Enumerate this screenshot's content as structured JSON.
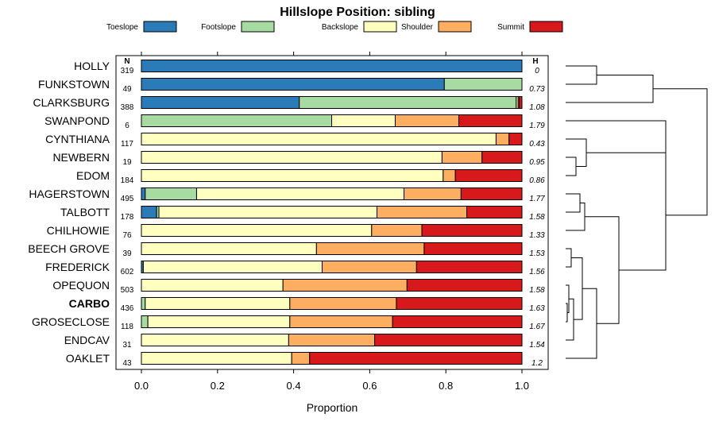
{
  "chart_data": {
    "type": "bar",
    "stacked": true,
    "orientation": "horizontal",
    "title": "Hillslope Position: sibling",
    "xlabel": "Proportion",
    "xlim": [
      0,
      1
    ],
    "xticks": [
      "0.0",
      "0.2",
      "0.4",
      "0.6",
      "0.8",
      "1.0"
    ],
    "n_header": "N",
    "h_header": "H",
    "series": [
      {
        "name": "Toeslope",
        "color": "#2B7BB8"
      },
      {
        "name": "Footslope",
        "color": "#A8DBA2"
      },
      {
        "name": "Backslope",
        "color": "#FFFFBF"
      },
      {
        "name": "Shoulder",
        "color": "#FDAE61"
      },
      {
        "name": "Summit",
        "color": "#D7191C"
      }
    ],
    "categories": [
      "HOLLY",
      "FUNKSTOWN",
      "CLARKSBURG",
      "SWANPOND",
      "CYNTHIANA",
      "NEWBERN",
      "EDOM",
      "HAGERSTOWN",
      "TALBOTT",
      "CHILHOWIE",
      "BEECH GROVE",
      "FREDERICK",
      "OPEQUON",
      "CARBO",
      "GROSECLOSE",
      "ENDCAV",
      "OAKLET"
    ],
    "highlight": "CARBO",
    "n": [
      "319",
      "49",
      "388",
      "6",
      "117",
      "19",
      "184",
      "495",
      "178",
      "76",
      "39",
      "602",
      "503",
      "436",
      "118",
      "31",
      "43"
    ],
    "h": [
      "0",
      "0.73",
      "1.08",
      "1.79",
      "0.43",
      "0.95",
      "0.86",
      "1.77",
      "1.58",
      "1.33",
      "1.53",
      "1.56",
      "1.58",
      "1.63",
      "1.67",
      "1.54",
      "1.2"
    ],
    "values": [
      [
        1.0,
        0.0,
        0.0,
        0.0,
        0.0
      ],
      [
        0.796,
        0.204,
        0.0,
        0.0,
        0.0
      ],
      [
        0.415,
        0.57,
        0.005,
        0.003,
        0.007
      ],
      [
        0.0,
        0.5,
        0.167,
        0.167,
        0.166
      ],
      [
        0.0,
        0.0,
        0.932,
        0.034,
        0.034
      ],
      [
        0.0,
        0.0,
        0.79,
        0.105,
        0.105
      ],
      [
        0.0,
        0.0,
        0.793,
        0.032,
        0.175
      ],
      [
        0.01,
        0.135,
        0.545,
        0.15,
        0.16
      ],
      [
        0.04,
        0.006,
        0.573,
        0.236,
        0.145
      ],
      [
        0.0,
        0.0,
        0.605,
        0.132,
        0.263
      ],
      [
        0.0,
        0.0,
        0.46,
        0.283,
        0.257
      ],
      [
        0.005,
        0.0,
        0.47,
        0.248,
        0.277
      ],
      [
        0.0,
        0.0,
        0.372,
        0.326,
        0.302
      ],
      [
        0.0,
        0.01,
        0.38,
        0.28,
        0.33
      ],
      [
        0.0,
        0.017,
        0.373,
        0.27,
        0.34
      ],
      [
        0.0,
        0.0,
        0.387,
        0.226,
        0.387
      ],
      [
        0.0,
        0.0,
        0.395,
        0.047,
        0.558
      ]
    ]
  }
}
